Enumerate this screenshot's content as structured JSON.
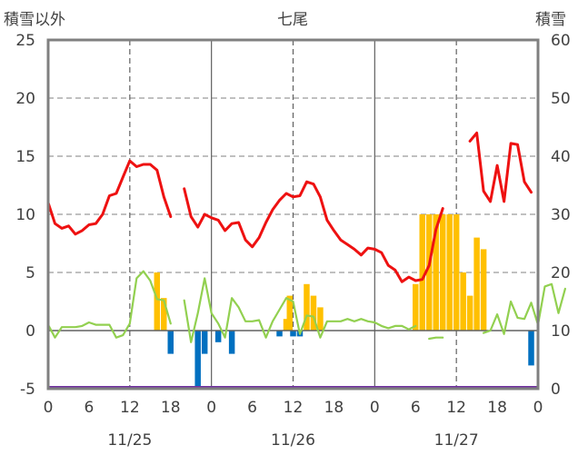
{
  "chart_data": {
    "type": "bar",
    "title": "七尾",
    "ylabel_left": "積雪以外",
    "ylabel_right": "積雪",
    "ylim_left": [
      -5,
      25
    ],
    "ylim_right": [
      0,
      60
    ],
    "yticks_left": [
      "-5",
      "0",
      "5",
      "10",
      "15",
      "20",
      "25"
    ],
    "yticks_right": [
      "0",
      "10",
      "20",
      "30",
      "40",
      "50",
      "60"
    ],
    "xticks": [
      "0",
      "6",
      "12",
      "18",
      "0",
      "6",
      "12",
      "18",
      "0",
      "6",
      "12",
      "18",
      "0"
    ],
    "day_labels": [
      "11/25",
      "11/26",
      "11/27"
    ],
    "grid": "dashed vertical at 12h, solid at day boundaries, dashed horizontal",
    "colors": {
      "temperature": "#ee1111",
      "wind": "#92d050",
      "precip_positive": "#ffc000",
      "precip_negative": "#0070c0",
      "snow_depth": "#7030a0",
      "frame": "#808080"
    },
    "series": [
      {
        "type": "line",
        "color_key": "temperature",
        "axis": "left",
        "segments": [
          {
            "start_hour": 0,
            "values": [
              11.0,
              9.2,
              8.8,
              9.0,
              8.3,
              8.6,
              9.1,
              9.2,
              10.0,
              11.6,
              11.8,
              13.2,
              14.6,
              14.1,
              14.3,
              14.3,
              13.8,
              11.5,
              9.8
            ]
          },
          {
            "start_hour": 20,
            "values": [
              12.2,
              9.8,
              8.9,
              10.0,
              9.7,
              9.5,
              8.6,
              9.2,
              9.3,
              7.8,
              7.2,
              8.0,
              9.3,
              10.4,
              11.2,
              11.8,
              11.5,
              11.6,
              12.8,
              12.6,
              11.5,
              9.5,
              8.6,
              7.8,
              7.4,
              7.0,
              6.5,
              7.1,
              7.0,
              6.7,
              5.6,
              5.2,
              4.2,
              4.6,
              4.3,
              4.4,
              5.6,
              8.7,
              10.5
            ]
          },
          {
            "start_hour": 62,
            "values": [
              16.3,
              17.0,
              12.0,
              11.1,
              14.2,
              11.1,
              16.1,
              16.0,
              12.8,
              11.9
            ]
          }
        ]
      },
      {
        "type": "line",
        "color_key": "wind",
        "axis": "left",
        "segments": [
          {
            "start_hour": 0,
            "values": [
              0.5,
              -0.6,
              0.3,
              0.3,
              0.3,
              0.4,
              0.7,
              0.5,
              0.5,
              0.5,
              -0.6,
              -0.4,
              0.6,
              4.5,
              5.1,
              4.3,
              2.7,
              2.6,
              0.6
            ]
          },
          {
            "start_hour": 20,
            "values": [
              2.6,
              -1.0,
              1.5,
              4.5,
              1.5,
              0.6,
              -0.6,
              2.8,
              2.0,
              0.8,
              0.8,
              0.9,
              -0.6,
              0.8,
              1.8,
              2.8,
              2.5,
              -0.3,
              1.3,
              1.2,
              -0.6,
              0.8,
              0.8,
              0.8,
              1.0,
              0.8,
              1.0,
              0.8,
              0.7,
              0.4,
              0.2,
              0.4,
              0.4,
              0.1,
              0.4
            ]
          },
          {
            "start_hour": 56,
            "values": [
              -0.7,
              -0.6,
              -0.6
            ]
          },
          {
            "start_hour": 64,
            "values": [
              -0.2,
              0.0,
              1.4,
              -0.3,
              2.5,
              1.1,
              1.0,
              2.4,
              0.5,
              3.8,
              4.0,
              1.5,
              3.6
            ]
          }
        ]
      }
    ],
    "bars": [
      {
        "hour": 16,
        "value": 5.0,
        "color_key": "precip_positive"
      },
      {
        "hour": 17,
        "value": 2.8,
        "color_key": "precip_positive"
      },
      {
        "hour": 18,
        "value": -2.0,
        "color_key": "precip_negative"
      },
      {
        "hour": 22,
        "value": -5.0,
        "color_key": "precip_negative"
      },
      {
        "hour": 23,
        "value": -2.0,
        "color_key": "precip_negative"
      },
      {
        "hour": 25,
        "value": -1.0,
        "color_key": "precip_negative"
      },
      {
        "hour": 27,
        "value": -2.0,
        "color_key": "precip_negative"
      },
      {
        "hour": 34,
        "value": -0.5,
        "color_key": "precip_negative"
      },
      {
        "hour": 35,
        "value": 1.0,
        "color_key": "precip_positive"
      },
      {
        "hour": 35.5,
        "value": 3.0,
        "color_key": "precip_positive"
      },
      {
        "hour": 36,
        "value": -0.5,
        "color_key": "precip_negative"
      },
      {
        "hour": 37,
        "value": -0.5,
        "color_key": "precip_negative"
      },
      {
        "hour": 38,
        "value": 4.0,
        "color_key": "precip_positive"
      },
      {
        "hour": 39,
        "value": 3.0,
        "color_key": "precip_positive"
      },
      {
        "hour": 40,
        "value": 2.0,
        "color_key": "precip_positive"
      },
      {
        "hour": 54,
        "value": 4.0,
        "color_key": "precip_positive"
      },
      {
        "hour": 55,
        "value": 10.0,
        "color_key": "precip_positive"
      },
      {
        "hour": 56,
        "value": 10.0,
        "color_key": "precip_positive"
      },
      {
        "hour": 57,
        "value": 10.0,
        "color_key": "precip_positive"
      },
      {
        "hour": 58,
        "value": 10.0,
        "color_key": "precip_positive"
      },
      {
        "hour": 59,
        "value": 10.0,
        "color_key": "precip_positive"
      },
      {
        "hour": 60,
        "value": 10.0,
        "color_key": "precip_positive"
      },
      {
        "hour": 61,
        "value": 5.0,
        "color_key": "precip_positive"
      },
      {
        "hour": 62,
        "value": 3.0,
        "color_key": "precip_positive"
      },
      {
        "hour": 63,
        "value": 8.0,
        "color_key": "precip_positive"
      },
      {
        "hour": 64,
        "value": 7.0,
        "color_key": "precip_positive"
      },
      {
        "hour": 71,
        "value": -3.0,
        "color_key": "precip_negative"
      }
    ],
    "snow_depth": {
      "color_key": "snow_depth",
      "axis": "right",
      "value": 0
    }
  }
}
